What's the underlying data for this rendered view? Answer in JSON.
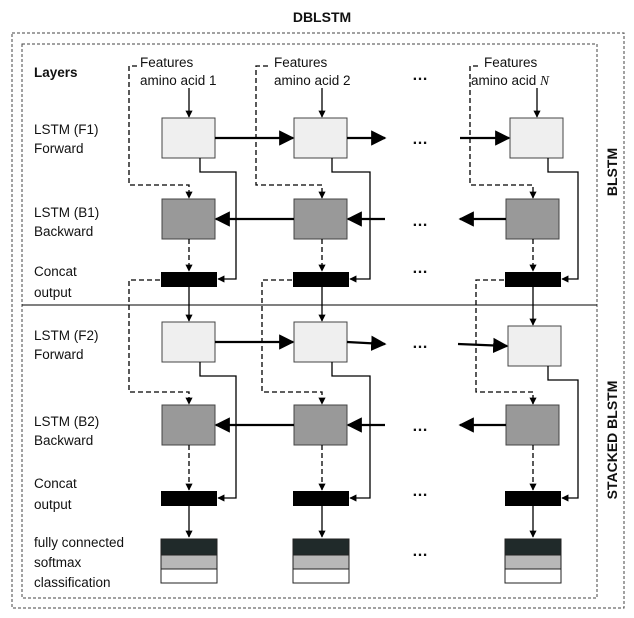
{
  "title": "DBLSTM",
  "layers_header": "Layers",
  "side_labels": {
    "top": "BLSTM",
    "bottom": "STACKED  BLSTM"
  },
  "features": [
    {
      "line1": "Features",
      "line2": "amino acid 1",
      "suffix": ""
    },
    {
      "line1": "Features",
      "line2": "amino acid 2",
      "suffix": ""
    },
    {
      "line1": "Features",
      "line2": "amino acid ",
      "suffix": "N"
    }
  ],
  "row_labels": {
    "f1": [
      "LSTM (F1)",
      "Forward"
    ],
    "b1": [
      "LSTM (B1)",
      "Backward"
    ],
    "c1": [
      "Concat",
      "output"
    ],
    "f2": [
      "LSTM (F2)",
      "Forward"
    ],
    "b2": [
      "LSTM (B2)",
      "Backward"
    ],
    "c2": [
      "Concat",
      "output"
    ],
    "fc": [
      "fully connected",
      "softmax",
      "classification"
    ]
  },
  "ellipsis": "…",
  "colors": {
    "forward_box": "#efefef",
    "backward_box": "#999999",
    "concat_box": "#000000",
    "fc_top": "#202a2a",
    "fc_mid": "#b8b8b8",
    "fc_bottom": "#ffffff"
  }
}
